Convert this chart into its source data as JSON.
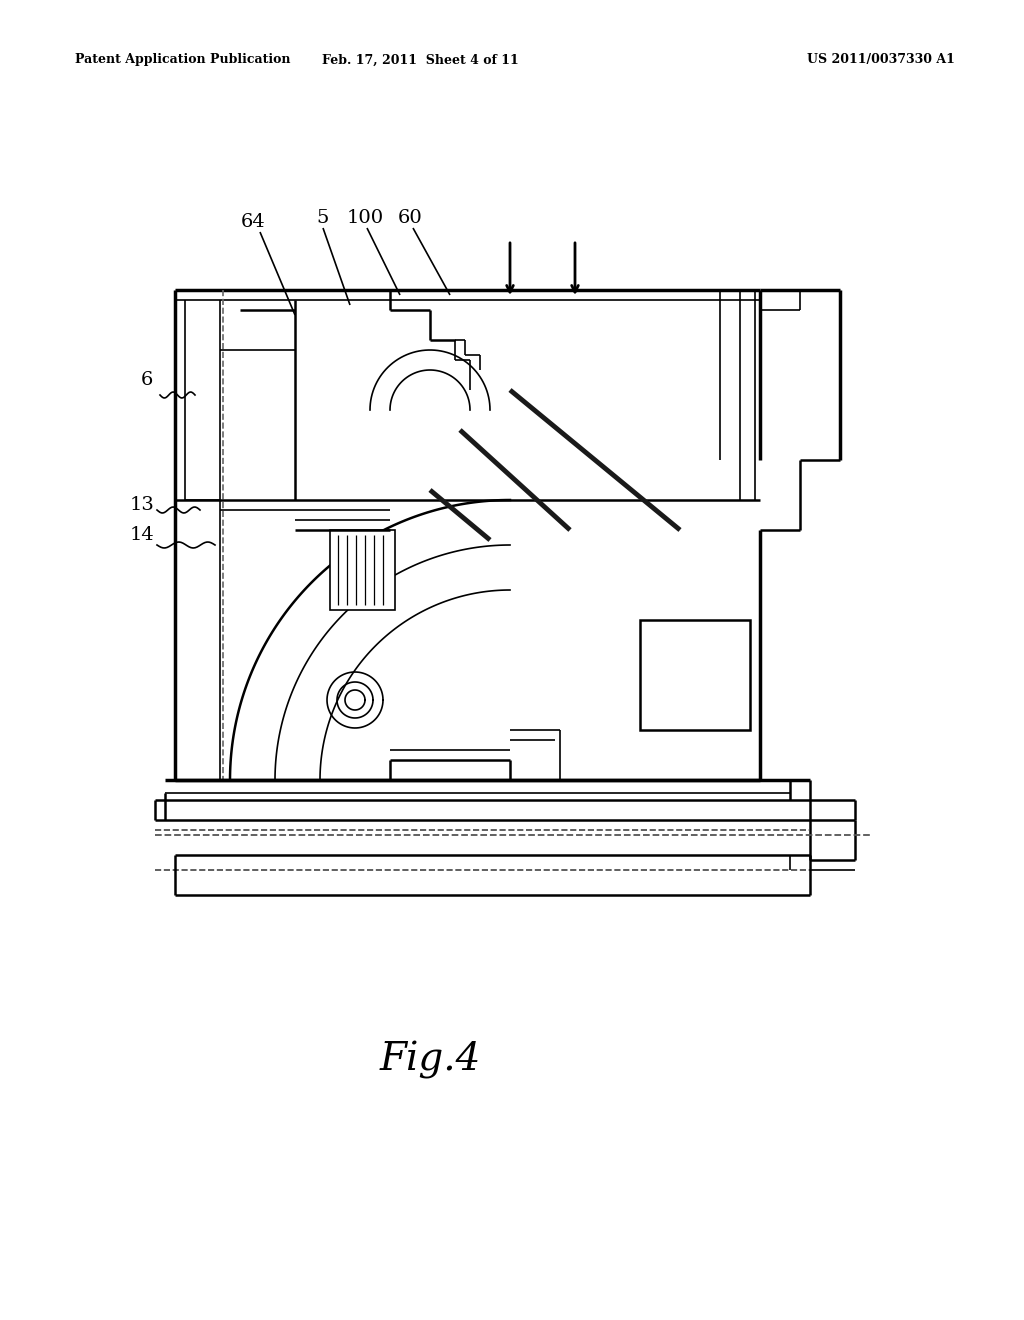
{
  "bg_color": "#ffffff",
  "line_color": "#000000",
  "lw_thick": 2.5,
  "lw_med": 1.8,
  "lw_thin": 1.2,
  "header_left": "Patent Application Publication",
  "header_mid": "Feb. 17, 2011  Sheet 4 of 11",
  "header_right": "US 2011/0037330 A1",
  "fig_label": "Fig.4"
}
